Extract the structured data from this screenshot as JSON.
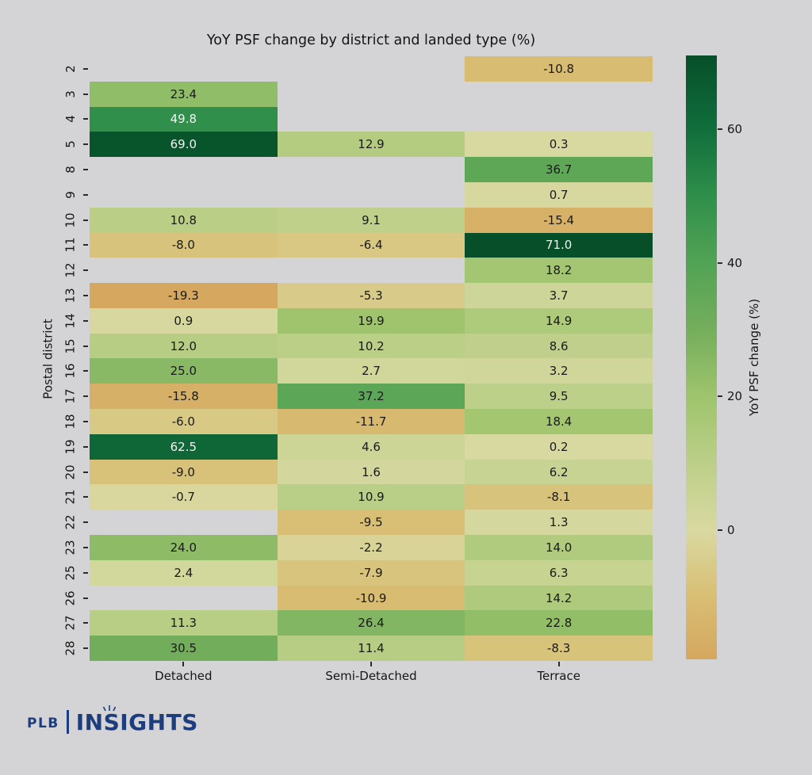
{
  "chart_data": {
    "type": "heatmap",
    "title": "YoY PSF change by district and landed type (%)",
    "xlabel": "",
    "ylabel": "Postal district",
    "columns": [
      "Detached",
      "Semi-Detached",
      "Terrace"
    ],
    "rows": [
      "2",
      "3",
      "4",
      "5",
      "8",
      "9",
      "10",
      "11",
      "12",
      "13",
      "14",
      "15",
      "16",
      "17",
      "18",
      "19",
      "20",
      "21",
      "22",
      "23",
      "25",
      "26",
      "27",
      "28"
    ],
    "values": [
      [
        null,
        null,
        -10.8
      ],
      [
        23.4,
        null,
        null
      ],
      [
        49.8,
        null,
        null
      ],
      [
        69.0,
        12.9,
        0.3
      ],
      [
        null,
        null,
        36.7
      ],
      [
        null,
        null,
        0.7
      ],
      [
        10.8,
        9.1,
        -15.4
      ],
      [
        -8.0,
        -6.4,
        71.0
      ],
      [
        null,
        null,
        18.2
      ],
      [
        -19.3,
        -5.3,
        3.7
      ],
      [
        0.9,
        19.9,
        14.9
      ],
      [
        12.0,
        10.2,
        8.6
      ],
      [
        25.0,
        2.7,
        3.2
      ],
      [
        -15.8,
        37.2,
        9.5
      ],
      [
        -6.0,
        -11.7,
        18.4
      ],
      [
        62.5,
        4.6,
        0.2
      ],
      [
        -9.0,
        1.6,
        6.2
      ],
      [
        -0.7,
        10.9,
        -8.1
      ],
      [
        null,
        -9.5,
        1.3
      ],
      [
        24.0,
        -2.2,
        14.0
      ],
      [
        2.4,
        -7.9,
        6.3
      ],
      [
        null,
        -10.9,
        14.2
      ],
      [
        11.3,
        26.4,
        22.8
      ],
      [
        30.5,
        11.4,
        -8.3
      ]
    ],
    "value_format": "1_decimal",
    "colorbar": {
      "label": "YoY PSF change (%)",
      "ticks": [
        60,
        40,
        20,
        0
      ],
      "vmin": -19.3,
      "vmax": 71.0
    },
    "colormap_stops": [
      {
        "v": -19.3,
        "color": "#d5a75f"
      },
      {
        "v": -10,
        "color": "#d8be73"
      },
      {
        "v": 0,
        "color": "#d9d9a1"
      },
      {
        "v": 10,
        "color": "#bccf88"
      },
      {
        "v": 20,
        "color": "#9fc46d"
      },
      {
        "v": 30,
        "color": "#74ae5c"
      },
      {
        "v": 40,
        "color": "#52a355"
      },
      {
        "v": 50,
        "color": "#2f8f4a"
      },
      {
        "v": 60,
        "color": "#116e3c"
      },
      {
        "v": 71,
        "color": "#064f28"
      }
    ],
    "grid": false,
    "annotation_text_dark": "#1a1a1a",
    "annotation_text_light": "#f2f2f2",
    "background": "#d4d4d6"
  },
  "logo": {
    "prefix": "PLB",
    "name": "INSIGHTS",
    "color": "#1d3d7d"
  }
}
